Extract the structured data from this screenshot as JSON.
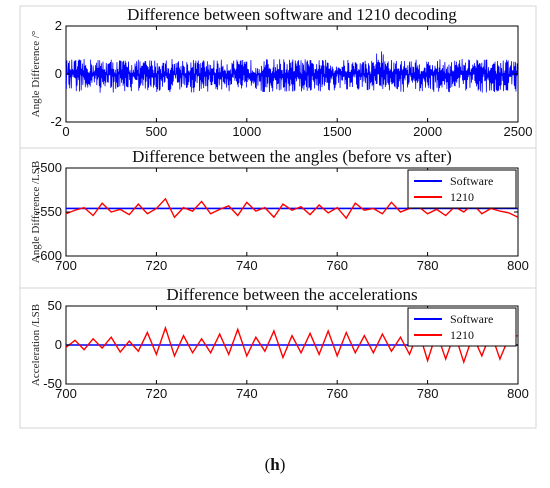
{
  "caption": {
    "open": "(",
    "letter": "h",
    "close": ")"
  },
  "chart_data": [
    {
      "type": "line",
      "title": "Difference between software and 1210 decoding",
      "ylabel": "Angle Difference /°",
      "xlabel": "",
      "xlim": [
        0,
        2500
      ],
      "ylim": [
        -2,
        2
      ],
      "xticks": [
        0,
        500,
        1000,
        1500,
        2000,
        2500
      ],
      "yticks": [
        -2,
        0,
        2
      ],
      "grid": false,
      "legend": null,
      "series": [
        {
          "color": "#0000ff",
          "style": "dense-noise",
          "mean": 0,
          "amplitude": 0.75,
          "x": [
            0,
            200,
            400,
            600,
            800,
            1000,
            1200,
            1400,
            1600,
            1700,
            1720,
            1760,
            1800,
            2000,
            2200,
            2400,
            2500
          ],
          "upper": [
            0.6,
            0.65,
            0.6,
            0.65,
            0.6,
            0.6,
            0.65,
            0.6,
            0.6,
            0.6,
            1.3,
            0.9,
            0.6,
            0.6,
            0.65,
            0.6,
            0.6
          ],
          "lower": [
            -0.75,
            -0.8,
            -0.75,
            -0.8,
            -0.75,
            -0.75,
            -0.8,
            -0.75,
            -0.75,
            -0.75,
            -0.5,
            -0.7,
            -0.75,
            -0.75,
            -0.8,
            -0.75,
            -0.75
          ]
        }
      ]
    },
    {
      "type": "line",
      "title": "Difference between the angles (before vs after)",
      "ylabel": "Angle Difference /LSB",
      "xlabel": "",
      "xlim": [
        700,
        800
      ],
      "ylim": [
        -600,
        -500
      ],
      "xticks": [
        700,
        720,
        740,
        760,
        780,
        800
      ],
      "yticks": [
        -600,
        -550,
        -500
      ],
      "grid": false,
      "legend": {
        "position": "top-right",
        "entries": [
          "Software",
          "1210"
        ]
      },
      "series": [
        {
          "name": "Software",
          "color": "#0000ff",
          "x": [
            700,
            710,
            720,
            730,
            740,
            750,
            760,
            770,
            780,
            790,
            800
          ],
          "y": [
            -546,
            -546,
            -546,
            -546,
            -546,
            -546,
            -546,
            -546,
            -546,
            -546,
            -546
          ]
        },
        {
          "name": "1210",
          "color": "#ff0000",
          "x": [
            700,
            702,
            704,
            706,
            708,
            710,
            712,
            714,
            716,
            718,
            720,
            722,
            724,
            726,
            728,
            730,
            732,
            734,
            736,
            738,
            740,
            742,
            744,
            746,
            748,
            750,
            752,
            754,
            756,
            758,
            760,
            762,
            764,
            766,
            768,
            770,
            772,
            774,
            776,
            778,
            780,
            782,
            784,
            786,
            788,
            790,
            792,
            794,
            796,
            798,
            800
          ],
          "y": [
            -552,
            -548,
            -545,
            -554,
            -540,
            -550,
            -547,
            -553,
            -541,
            -552,
            -546,
            -535,
            -556,
            -545,
            -549,
            -538,
            -552,
            -547,
            -543,
            -554,
            -539,
            -549,
            -545,
            -556,
            -541,
            -548,
            -544,
            -553,
            -542,
            -551,
            -545,
            -557,
            -540,
            -548,
            -546,
            -552,
            -539,
            -550,
            -546,
            -544,
            -552,
            -547,
            -554,
            -544,
            -550,
            -541,
            -552,
            -546,
            -549,
            -551,
            -556
          ]
        }
      ]
    },
    {
      "type": "line",
      "title": "Difference between the accelerations",
      "ylabel": "Acceleration /LSB",
      "xlabel": "",
      "xlim": [
        700,
        800
      ],
      "ylim": [
        -50,
        50
      ],
      "xticks": [
        700,
        720,
        740,
        760,
        780,
        800
      ],
      "yticks": [
        -50,
        0,
        50
      ],
      "grid": false,
      "legend": {
        "position": "top-right",
        "entries": [
          "Software",
          "1210"
        ]
      },
      "series": [
        {
          "name": "Software",
          "color": "#0000ff",
          "x": [
            700,
            710,
            720,
            730,
            740,
            750,
            760,
            770,
            780,
            790,
            800
          ],
          "y": [
            0,
            0,
            0,
            0,
            0,
            0,
            0,
            0,
            0,
            0,
            0
          ]
        },
        {
          "name": "1210",
          "color": "#ff0000",
          "x": [
            700,
            702,
            704,
            706,
            708,
            710,
            712,
            714,
            716,
            718,
            720,
            722,
            724,
            726,
            728,
            730,
            732,
            734,
            736,
            738,
            740,
            742,
            744,
            746,
            748,
            750,
            752,
            754,
            756,
            758,
            760,
            762,
            764,
            766,
            768,
            770,
            772,
            774,
            776,
            778,
            780,
            782,
            784,
            786,
            788,
            790,
            792,
            794,
            796,
            798,
            800
          ],
          "y": [
            -3,
            6,
            -6,
            8,
            -4,
            10,
            -9,
            5,
            -8,
            16,
            -12,
            22,
            -14,
            12,
            -10,
            8,
            -10,
            14,
            -12,
            20,
            -14,
            10,
            -8,
            18,
            -16,
            12,
            -10,
            15,
            -12,
            18,
            -14,
            16,
            -10,
            12,
            -10,
            14,
            -8,
            10,
            -12,
            18,
            -20,
            16,
            -18,
            15,
            -22,
            12,
            -14,
            16,
            -18,
            10,
            12
          ]
        }
      ]
    }
  ]
}
